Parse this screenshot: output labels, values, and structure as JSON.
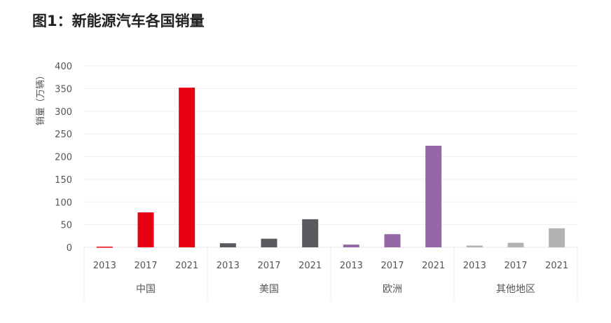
{
  "chart_data": {
    "type": "bar",
    "title": "图1：新能源汽车各国销量",
    "ylabel": "销量（万辆）",
    "xlabel": "",
    "ylim": [
      0,
      400
    ],
    "yticks": [
      0,
      50,
      100,
      150,
      200,
      250,
      300,
      350,
      400
    ],
    "grid": true,
    "groups": [
      {
        "name": "中国",
        "color": "#e60012",
        "categories": [
          "2013",
          "2017",
          "2021"
        ],
        "values": [
          1.5,
          77,
          352
        ]
      },
      {
        "name": "美国",
        "color": "#595b5f",
        "categories": [
          "2013",
          "2017",
          "2021"
        ],
        "values": [
          9,
          19,
          62
        ]
      },
      {
        "name": "欧洲",
        "color": "#9467a6",
        "categories": [
          "2013",
          "2017",
          "2021"
        ],
        "values": [
          6,
          29,
          224
        ]
      },
      {
        "name": "其他地区",
        "color": "#b2b2b2",
        "categories": [
          "2013",
          "2017",
          "2021"
        ],
        "values": [
          4,
          10,
          42
        ]
      }
    ]
  }
}
